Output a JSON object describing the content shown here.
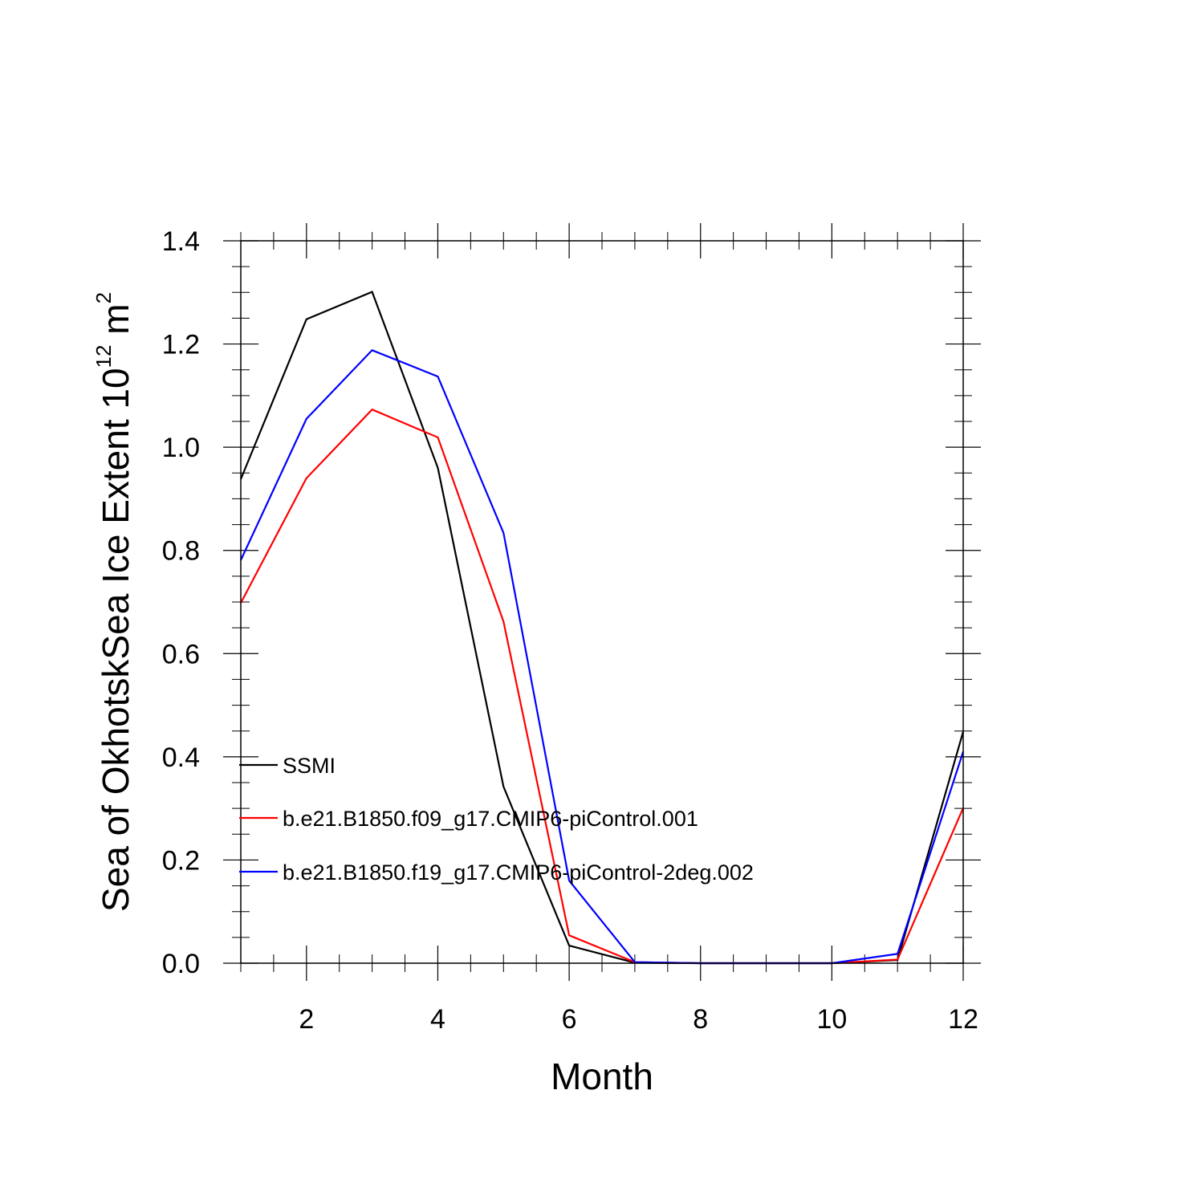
{
  "chart_data": {
    "type": "line",
    "xlabel": "Month",
    "ylabel": "Sea of OkhotskSea Ice Extent 10",
    "ylabel_exponent": "12",
    "ylabel_unit": " m",
    "ylabel_unit_exponent": "2",
    "xlim": [
      1,
      12
    ],
    "ylim": [
      0.0,
      1.4
    ],
    "x_ticks": [
      2,
      4,
      6,
      8,
      10,
      12
    ],
    "x_tick_labels": [
      "2",
      "4",
      "6",
      "8",
      "10",
      "12"
    ],
    "y_ticks": [
      0.0,
      0.2,
      0.4,
      0.6,
      0.8,
      1.0,
      1.2,
      1.4
    ],
    "y_tick_labels": [
      "0.0",
      "0.2",
      "0.4",
      "0.6",
      "0.8",
      "1.0",
      "1.2",
      "1.4"
    ],
    "grid": false,
    "legend_position": "bottom-left",
    "x": [
      1,
      2,
      3,
      4,
      5,
      6,
      7,
      8,
      9,
      10,
      11,
      12
    ],
    "series": [
      {
        "name": "SSMI",
        "color": "#000000",
        "values": [
          0.938,
          1.248,
          1.301,
          0.96,
          0.342,
          0.034,
          0.001,
          0.0,
          0.0,
          0.0,
          0.006,
          0.449
        ]
      },
      {
        "name": "b.e21.B1850.f09_g17.CMIP6-piControl.001",
        "color": "#ff0000",
        "values": [
          0.698,
          0.94,
          1.073,
          1.019,
          0.662,
          0.054,
          0.002,
          0.0,
          0.0,
          0.0,
          0.007,
          0.301
        ]
      },
      {
        "name": "b.e21.B1850.f19_g17.CMIP6-piControl-2deg.002",
        "color": "#0000ff",
        "values": [
          0.781,
          1.055,
          1.188,
          1.137,
          0.834,
          0.16,
          0.002,
          0.0,
          0.0,
          0.0,
          0.018,
          0.41
        ]
      }
    ]
  }
}
